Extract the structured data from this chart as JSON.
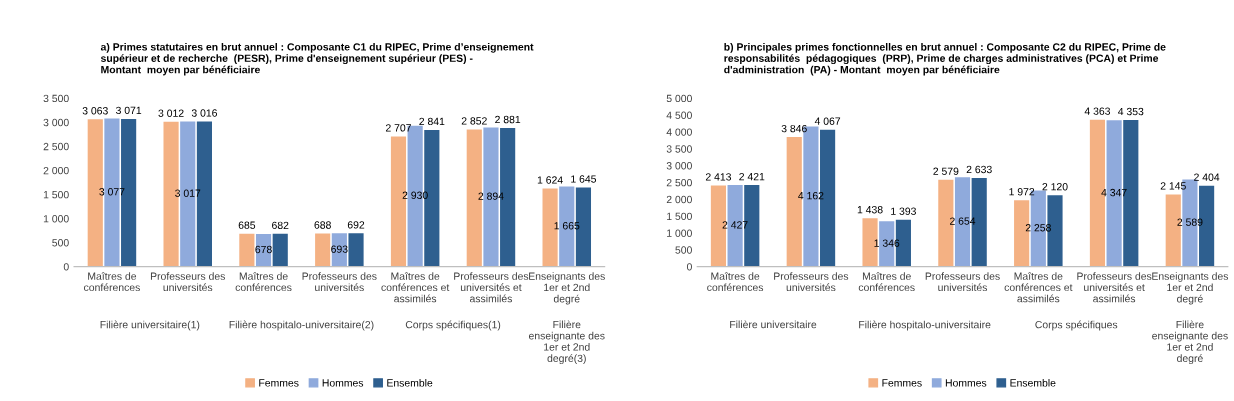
{
  "chart_data": [
    {
      "type": "bar",
      "title": "a) Primes statutaires en brut annuel : Composante C1 du RIPEC, Prime d’enseignement\nsupérieur et de recherche  (PESR), Prime d'enseignement supérieur (PES) -\nMontant  moyen par bénéficiaire",
      "categories": [
        "Maîtres de\nconférences",
        "Professeurs des\nuniversités",
        "Maîtres de\nconférences",
        "Professeurs des\nuniversités",
        "Maîtres de\nconférences et\nassimilés",
        "Professeurs des\nuniversités et\nassimilés",
        "Enseignants des\n1er et 2nd\ndegré"
      ],
      "annotations": [
        "Filière universitaire(1)",
        "Filière hospitalo-universitaire(2)",
        "Corps spécifiques(1)",
        "Filière\nenseignante des\n1er et 2nd\ndegré(3)"
      ],
      "ylim": [
        0,
        3500
      ],
      "yticks": [
        0,
        500,
        {
          "value": 1000,
          "label": "1 000"
        },
        {
          "value": 1500,
          "label": "1 500"
        },
        {
          "value": 2000,
          "label": "2 000"
        },
        {
          "value": 2500,
          "label": "2 500"
        },
        {
          "value": 3000,
          "label": "3 000"
        },
        {
          "value": 3500,
          "label": "3 500"
        }
      ],
      "grid": false,
      "legend": "bottom",
      "series": [
        {
          "name": "Femmes",
          "color": "#f4b183",
          "values": [
            3063,
            3012,
            685,
            688,
            2707,
            2852,
            1624
          ],
          "value_labels": [
            "3 063",
            "3 012",
            "685",
            "688",
            "2 707",
            "2 852",
            "1 624"
          ]
        },
        {
          "name": "Hommes",
          "color": "#8faadc",
          "values": [
            3077,
            3017,
            678,
            693,
            2930,
            2894,
            1665
          ],
          "value_labels": [
            "3 077",
            "3 017",
            "678",
            "693",
            "2 930",
            "2 894",
            "1 665"
          ]
        },
        {
          "name": "Ensemble",
          "color": "#2e5f8f",
          "values": [
            3071,
            3016,
            682,
            692,
            2841,
            2881,
            1645
          ],
          "value_labels": [
            "3 071",
            "3 016",
            "682",
            "692",
            "2 841",
            "2 881",
            "1 645"
          ]
        }
      ]
    },
    {
      "type": "bar",
      "title": "b) Principales primes fonctionnelles en brut annuel : Composante C2 du RIPEC, Prime de\nresponsabilités  pédagogiques  (PRP), Prime de charges administratives (PCA) et Prime\nd'administration  (PA) - Montant  moyen par bénéficiaire",
      "categories": [
        "Maîtres de\nconférences",
        "Professeurs des\nuniversités",
        "Maîtres de\nconférences",
        "Professeurs des\nuniversités",
        "Maîtres de\nconférences et\nassimilés",
        "Professeurs des\nuniversités et\nassimilés",
        "Enseignants des\n1er et 2nd\ndegré"
      ],
      "annotations": [
        "Filière universitaire",
        "Filière hospitalo-universitaire",
        "Corps spécifiques",
        "Filière\nenseignante des\n1er et 2nd\ndegré"
      ],
      "ylim": [
        0,
        5000
      ],
      "yticks": [
        0,
        500,
        {
          "value": 1000,
          "label": "1 000"
        },
        {
          "value": 1500,
          "label": "1 500"
        },
        {
          "value": 2000,
          "label": "2 000"
        },
        {
          "value": 2500,
          "label": "2 500"
        },
        {
          "value": 3000,
          "label": "3 000"
        },
        {
          "value": 3500,
          "label": "3 500"
        },
        {
          "value": 4000,
          "label": "4 000"
        },
        {
          "value": 4500,
          "label": "4 500"
        },
        {
          "value": 5000,
          "label": "5 000"
        }
      ],
      "grid": false,
      "legend": "bottom",
      "series": [
        {
          "name": "Femmes",
          "color": "#f4b183",
          "values": [
            2413,
            3846,
            1438,
            2579,
            1972,
            4363,
            2145
          ],
          "value_labels": [
            "2 413",
            "3 846",
            "1 438",
            "2 579",
            "1 972",
            "4 363",
            "2 145"
          ]
        },
        {
          "name": "Hommes",
          "color": "#8faadc",
          "values": [
            2427,
            4162,
            1346,
            2654,
            2258,
            4347,
            2589
          ],
          "value_labels": [
            "2 427",
            "4 162",
            "1 346",
            "2 654",
            "2 258",
            "4 347",
            "2 589"
          ]
        },
        {
          "name": "Ensemble",
          "color": "#2e5f8f",
          "values": [
            2421,
            4067,
            1393,
            2633,
            2120,
            4353,
            2404
          ],
          "value_labels": [
            "2 421",
            "4 067",
            "1 393",
            "2 633",
            "2 120",
            "4 353",
            "2 404"
          ]
        }
      ]
    }
  ]
}
